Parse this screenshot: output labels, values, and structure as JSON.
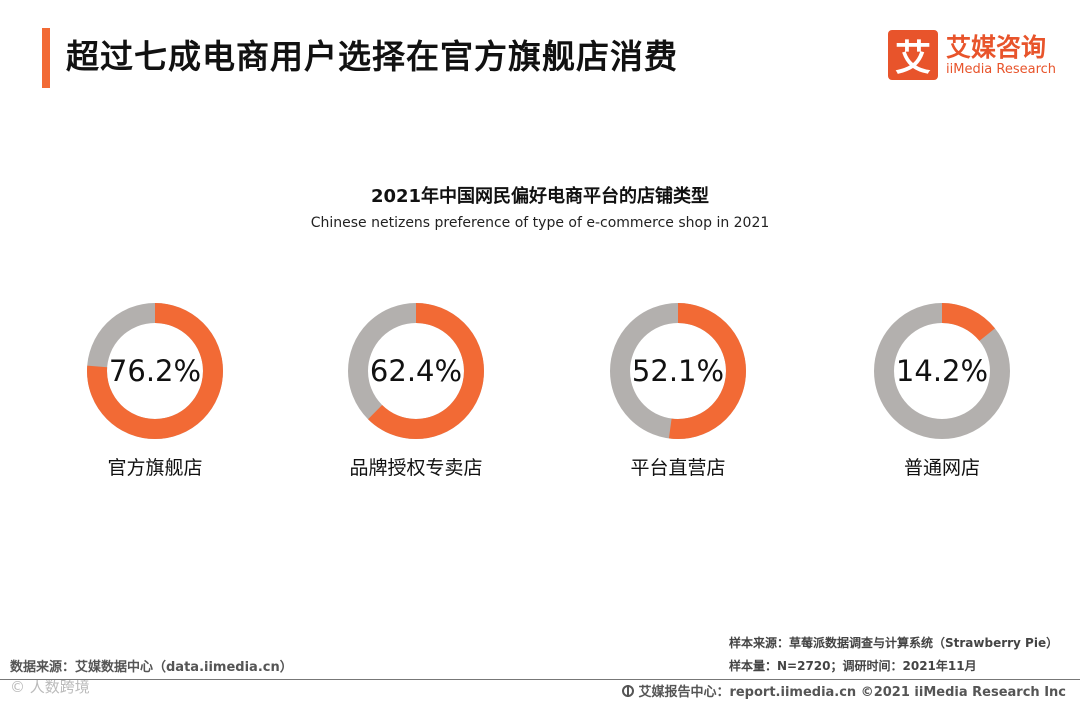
{
  "header": {
    "title": "超过七成电商用户选择在官方旗舰店消费",
    "logo_mark": "艾",
    "logo_cn": "艾媒咨询",
    "logo_en": "iiMedia Research"
  },
  "chart_data": {
    "type": "pie",
    "title": "2021年中国网民偏好电商平台的店铺类型",
    "subtitle": "Chinese netizens preference of type of e-commerce shop in 2021",
    "unit": "%",
    "categories": [
      "官方旗舰店",
      "品牌授权专卖店",
      "平台直营店",
      "普通网店"
    ],
    "values": [
      76.2,
      62.4,
      52.1,
      14.2
    ],
    "labels": [
      "76.2%",
      "62.4%",
      "52.1%",
      "14.2%"
    ],
    "colors": {
      "value": "#f26a35",
      "remainder": "#b3b0ae"
    }
  },
  "footer": {
    "source": "数据来源：艾媒数据中心（data.iimedia.cn）",
    "watermark": "© 人数跨境",
    "sample_source": "样本来源：草莓派数据调查与计算系统（Strawberry Pie）",
    "sample_count": "样本量：N=2720；调研时间：2021年11月",
    "report": "艾媒报告中心：report.iimedia.cn  ©2021  iiMedia Research Inc"
  }
}
